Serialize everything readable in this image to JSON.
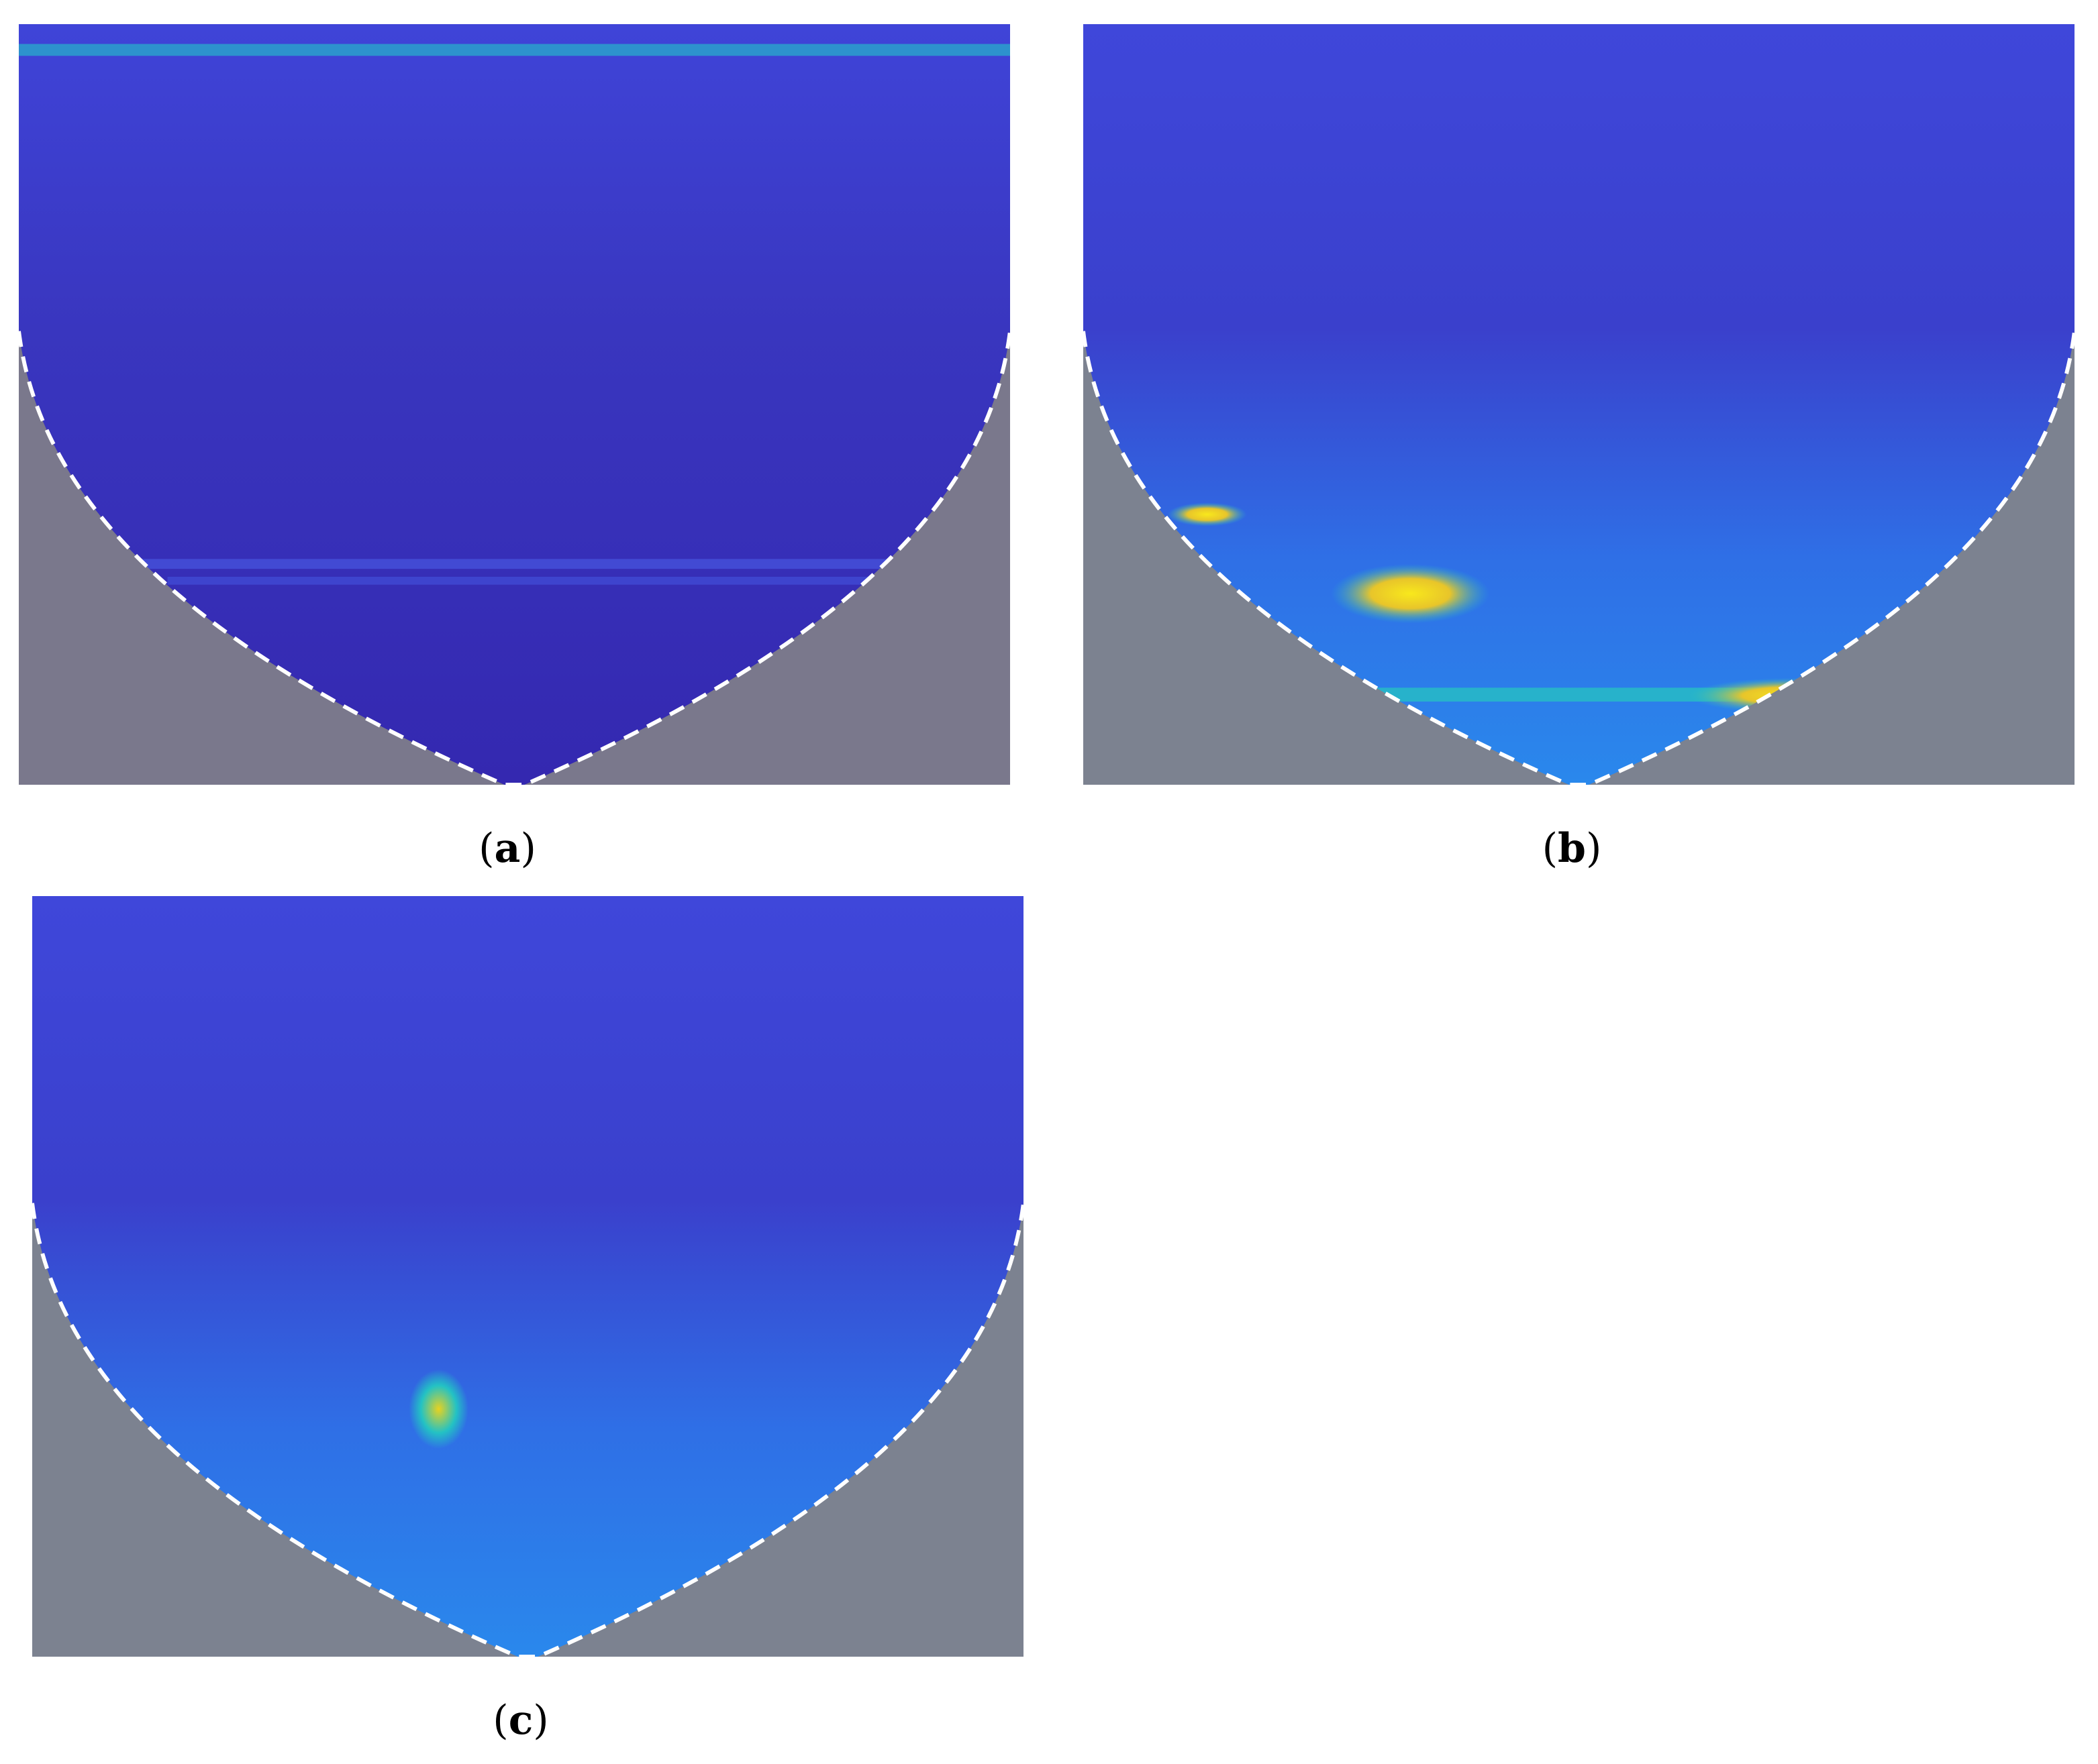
{
  "chart_data": [
    {
      "type": "heatmap",
      "panel_label": "a",
      "hot_spots": [],
      "colors": {
        "low": "#3b2fb5",
        "mid": "#2b8cf0",
        "teal": "#23c2c4",
        "high": "#f5e31b",
        "cone": "#7c7a8e",
        "cone_line": "#ffffff"
      }
    },
    {
      "type": "heatmap",
      "panel_label": "b",
      "hot_spots": [],
      "colors": {
        "low": "#3b2fb5",
        "mid": "#2b8cf0",
        "teal": "#23c2c4",
        "high": "#f5e31b",
        "cone": "#7c7a8e",
        "cone_line": "#ffffff"
      }
    },
    {
      "type": "heatmap",
      "panel_label": "c",
      "hot_spots": [],
      "colors": {
        "low": "#3b2fb5",
        "mid": "#2b8cf0",
        "teal": "#23c2c4",
        "high": "#f5e31b",
        "cone": "#7c7a8e",
        "cone_line": "#ffffff"
      }
    }
  ],
  "captions": {
    "a": "a",
    "b": "b",
    "c": "c"
  }
}
